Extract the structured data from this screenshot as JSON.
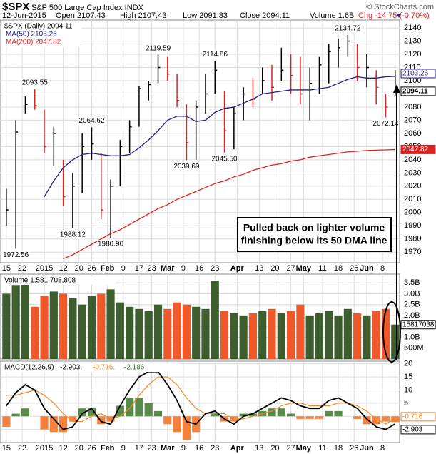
{
  "chart_data": [
    {
      "type": "ohlc",
      "title": "$SPX",
      "subtitle": "S&P 500 Large Cap Index INDX",
      "date": "12-Jun-2015",
      "quote": [
        "Open 2107.43",
        "High 2107.43",
        "Low 2091.33",
        "Close 2094.11",
        "Volume 1.6B",
        "Chg -14.75 (-0.70%)"
      ],
      "credit": "© StockCharts.com",
      "legend_title": "$SPX (Daily) 2094.11",
      "x": [
        0,
        3,
        6,
        9,
        12,
        15,
        18,
        21,
        24,
        27,
        30,
        33,
        36,
        39,
        42,
        45,
        48,
        51,
        54,
        57,
        60,
        63,
        66,
        69,
        72,
        75,
        78,
        81,
        84,
        87,
        90,
        93,
        96,
        99,
        102,
        105,
        108,
        111,
        114,
        117,
        120,
        123
      ],
      "high": [
        2018,
        2070,
        2088,
        2093.55,
        2078,
        2065,
        2040,
        2030,
        2060,
        2064.62,
        2045,
        2025,
        2055,
        2070,
        2096,
        2100,
        2119.59,
        2118,
        2105,
        2082,
        2085,
        2105,
        2114.86,
        2092,
        2080,
        2095,
        2102,
        2110,
        2112,
        2125,
        2120,
        2118,
        2110,
        2118,
        2128,
        2132,
        2134.72,
        2128,
        2120,
        2108,
        2090,
        2108
      ],
      "low": [
        1990,
        1972.56,
        2075,
        2078,
        2045,
        2035,
        2005,
        1988.12,
        2015,
        2040,
        1995,
        1980.9,
        2020,
        2045,
        2065,
        2085,
        2098,
        2100,
        2080,
        2039.69,
        2040,
        2075,
        2090,
        2045.5,
        2048,
        2070,
        2080,
        2090,
        2085,
        2100,
        2090,
        2082,
        2070,
        2090,
        2098,
        2110,
        2118,
        2100,
        2095,
        2082,
        2072.14,
        2088
      ],
      "close": [
        2002,
        2061,
        2082,
        2081,
        2050,
        2060,
        2012,
        2020,
        2050,
        2052,
        2002,
        2020,
        2050,
        2065,
        2094,
        2097,
        2110,
        2105,
        2085,
        2053,
        2080,
        2090,
        2108,
        2062,
        2075,
        2090,
        2086,
        2100,
        2095,
        2108,
        2104,
        2090,
        2098,
        2112,
        2122,
        2125,
        2130,
        2110,
        2110,
        2095,
        2080,
        2094.11
      ],
      "up_color": "#000000",
      "down_color": "#dd2222",
      "series": [
        {
          "name": "MA(50) 2103.26",
          "color": "#22228a",
          "values": [
            null,
            null,
            null,
            null,
            2012,
            2024,
            2034,
            2040,
            2044,
            2045,
            2044,
            2043,
            2043,
            2044,
            2049,
            2055,
            2062,
            2070,
            2073,
            2073,
            2069,
            2070,
            2076,
            2079,
            2080,
            2083,
            2086,
            2090,
            2091,
            2092,
            2093,
            2093,
            2093,
            2094,
            2095,
            2098,
            2101,
            2103,
            2102,
            2102,
            2103,
            2103.26
          ]
        },
        {
          "name": "MA(200) 2047.82",
          "color": "#dd2222",
          "values": [
            null,
            null,
            null,
            null,
            null,
            null,
            1965,
            1968,
            1972,
            1976,
            1980,
            1984,
            1987,
            1991,
            1995,
            1999,
            2003,
            2006,
            2010,
            2013,
            2016,
            2019,
            2022,
            2024,
            2027,
            2029,
            2032,
            2034,
            2036,
            2037,
            2039,
            2040,
            2042,
            2043,
            2044,
            2045,
            2046,
            2046.5,
            2047,
            2047.3,
            2047.5,
            2047.82
          ]
        }
      ],
      "highs_marked": [
        {
          "x": 9,
          "value": 2093.55
        },
        {
          "x": 27,
          "value": 2064.62
        },
        {
          "x": 48,
          "value": 2119.59
        },
        {
          "x": 66,
          "value": 2114.86
        },
        {
          "x": 108,
          "value": 2134.72
        }
      ],
      "lows_marked": [
        {
          "x": 3,
          "value": 1972.56
        },
        {
          "x": 21,
          "value": 1988.12
        },
        {
          "x": 33,
          "value": {
            "value": 1980.9,
            "label": "1980.90"
          }
        },
        {
          "x": 57,
          "value": 2039.69
        },
        {
          "x": 69,
          "value": {
            "value": 2045.5,
            "label": "2045.50"
          }
        },
        {
          "x": 120,
          "value": 2072.14
        }
      ],
      "note_lines": [
        "Pulled back on lighter volume",
        "finishing below its 50 DMA line"
      ],
      "xlim": [
        -2,
        124.4
      ],
      "xticks": [
        {
          "value": 0,
          "label": "15"
        },
        {
          "value": 5,
          "label": "22"
        },
        {
          "value": 12,
          "label": "2015"
        },
        {
          "value": 18,
          "label": "12"
        },
        {
          "value": 23,
          "label": "20"
        },
        {
          "value": 27,
          "label": "26"
        },
        {
          "value": 32,
          "label": "Feb"
        },
        {
          "value": 37,
          "label": "9"
        },
        {
          "value": 42,
          "label": "17"
        },
        {
          "value": 46,
          "label": "23"
        },
        {
          "value": 51,
          "label": "Mar"
        },
        {
          "value": 56,
          "label": "9"
        },
        {
          "value": 61,
          "label": "16"
        },
        {
          "value": 66,
          "label": "23"
        },
        {
          "value": 73,
          "label": "Apr"
        },
        {
          "value": 80,
          "label": "13"
        },
        {
          "value": 85,
          "label": "20"
        },
        {
          "value": 90,
          "label": "27"
        },
        {
          "value": 94,
          "label": "May"
        },
        {
          "value": 100,
          "label": "11"
        },
        {
          "value": 105,
          "label": "18"
        },
        {
          "value": 110,
          "label": "26"
        },
        {
          "value": 114,
          "label": "Jun"
        },
        {
          "value": 119,
          "label": "8"
        }
      ],
      "ylim": [
        1962,
        2146
      ],
      "yticks": [
        1970,
        1980,
        1990,
        2000,
        2010,
        2020,
        2030,
        2040,
        2050,
        2060,
        2070,
        2080,
        2090,
        2100,
        2110,
        2120,
        2130,
        2140
      ],
      "grid": true
    },
    {
      "type": "bar",
      "title": "Volume 1,581,703,808",
      "values": [
        3000000000.0,
        3400000000.0,
        3600000000.0,
        2400000000.0,
        2900000000.0,
        3100000000.0,
        3000000000.0,
        2800000000.0,
        2500000000.0,
        2900000000.0,
        3000000000.0,
        3200000000.0,
        2600000000.0,
        2400000000.0,
        2300000000.0,
        2200000000.0,
        2500000000.0,
        2300000000.0,
        2600000000.0,
        2500000000.0,
        2400000000.0,
        2300000000.0,
        3600000000.0,
        2200000000.0,
        2100000000.0,
        2000000000.0,
        2100000000.0,
        2200000000.0,
        2300000000.0,
        2100000000.0,
        2200000000.0,
        2500000000.0,
        2000000000.0,
        2100000000.0,
        2200000000.0,
        2000000000.0,
        2300000000.0,
        2100000000.0,
        2000000000.0,
        2200000000.0,
        2300000000.0,
        1581703808
      ],
      "up_color": "#3d5e2e",
      "down_color": "#f0582a",
      "ylim": [
        0,
        3900000000.0
      ],
      "yticks": [
        {
          "value": 500000000,
          "label": "500M"
        },
        {
          "value": 1000000000,
          "label": "1.0B"
        },
        {
          "value": 1500000000,
          "label": "1.5B"
        },
        {
          "value": 2000000000,
          "label": "2.0B"
        },
        {
          "value": 2500000000,
          "label": "2.5B"
        },
        {
          "value": 3000000000,
          "label": "3.0B"
        },
        {
          "value": 3500000000,
          "label": "3.5B"
        }
      ]
    },
    {
      "type": "macd",
      "title": "MACD(12,26,9)",
      "series": [
        {
          "name": "-2.903,",
          "color": "#000000",
          "values": [
            4,
            9,
            12,
            10,
            3,
            -1,
            -5,
            -4,
            1,
            3,
            -2,
            -3,
            4,
            10,
            15,
            17,
            17,
            12,
            6,
            -2,
            -3,
            1,
            2,
            -1,
            -3,
            0,
            1,
            3,
            5,
            7,
            6,
            4,
            3,
            3,
            6,
            7,
            5,
            3,
            -1,
            -4,
            -5,
            -2.903
          ]
        },
        {
          "name": "-0.716,",
          "color": "#f08a24",
          "values": [
            8,
            8,
            9,
            10,
            8,
            5,
            1,
            -2,
            -2,
            0,
            1,
            -1,
            0,
            3,
            8,
            12,
            15,
            15,
            12,
            7,
            3,
            1,
            1,
            1,
            -1,
            -1,
            0,
            1,
            2,
            4,
            5,
            5,
            4,
            4,
            4,
            5,
            5,
            4,
            2,
            -1,
            -3,
            -0.716
          ]
        },
        {
          "name": "-2.186",
          "color": "#3a6e2a",
          "values": [
            -4,
            1,
            3,
            0,
            -5,
            -6,
            -6,
            -2,
            3,
            3,
            -3,
            -2,
            4,
            7,
            7,
            5,
            2,
            -3,
            -6,
            -9,
            -6,
            0,
            1,
            -2,
            -2,
            1,
            1,
            2,
            3,
            3,
            1,
            -1,
            -1,
            -1,
            2,
            2,
            0,
            -1,
            -3,
            -3,
            -2,
            -2.186
          ]
        }
      ],
      "pos_color": "#5a8a4a",
      "neg_color": "#f5813a",
      "ylim": [
        -10,
        21
      ],
      "yticks": [
        20,
        15,
        10,
        5,
        0,
        -5
      ]
    }
  ]
}
